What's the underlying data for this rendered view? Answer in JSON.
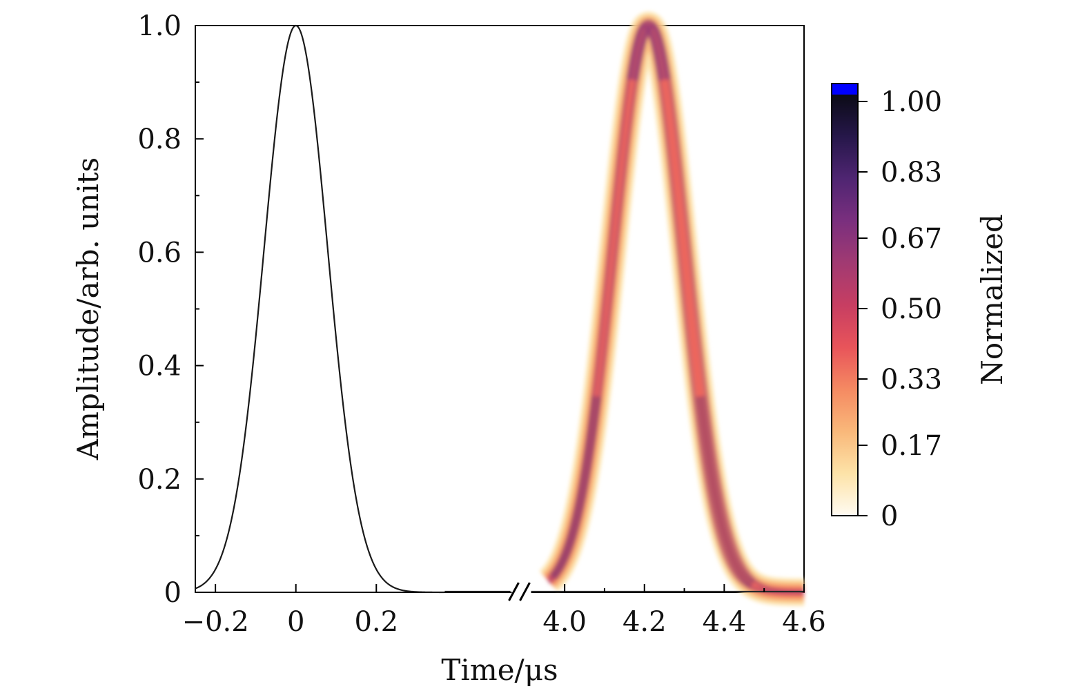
{
  "chart_data": {
    "type": "line",
    "title": "",
    "xlabel": "Time/μs",
    "ylabel": "Amplitude/arb. units",
    "ylim": [
      0,
      1.0
    ],
    "grid": false,
    "x_axis_break": true,
    "x_segments": [
      {
        "xlim": [
          -0.25,
          0.39
        ],
        "ticks": [
          -0.2,
          0,
          0.2
        ],
        "tick_labels": [
          "−0.2",
          "0",
          "0.2"
        ]
      },
      {
        "xlim": [
          3.96,
          4.6
        ],
        "ticks": [
          4.0,
          4.2,
          4.4,
          4.6
        ],
        "tick_labels": [
          "4.0",
          "4.2",
          "4.4",
          "4.6"
        ]
      }
    ],
    "y_ticks": [
      0,
      0.2,
      0.4,
      0.6,
      0.8,
      1.0
    ],
    "y_tick_labels": [
      "0",
      "0.2",
      "0.4",
      "0.6",
      "0.8",
      "1.0"
    ],
    "series": [
      {
        "kind": "input pulse",
        "shape": "gaussian",
        "center": 0.0,
        "fwhm": 0.186,
        "peak": 1.0,
        "color": "#1a1a1a",
        "x": [
          -0.25,
          -0.2,
          -0.15,
          -0.1,
          -0.05,
          0.0,
          0.05,
          0.1,
          0.15,
          0.2,
          0.25,
          0.3,
          0.35
        ],
        "y": [
          0.0,
          0.03,
          0.14,
          0.41,
          0.8,
          1.0,
          0.8,
          0.41,
          0.14,
          0.03,
          0.0,
          0.0,
          0.0
        ]
      },
      {
        "kind": "output pulse density band",
        "shape": "gaussian",
        "center": 4.21,
        "fwhm": 0.21,
        "peak": 1.0,
        "band_width": 0.042,
        "x": [
          3.95,
          4.0,
          4.05,
          4.1,
          4.15,
          4.2,
          4.21,
          4.25,
          4.3,
          4.35,
          4.4,
          4.45,
          4.5
        ],
        "y": [
          0.0,
          0.03,
          0.16,
          0.42,
          0.75,
          0.99,
          1.0,
          0.88,
          0.55,
          0.24,
          0.07,
          0.01,
          0.0
        ]
      }
    ],
    "colorbar": {
      "label": "Normalized",
      "ticks": [
        0,
        0.17,
        0.33,
        0.5,
        0.67,
        0.83,
        1.0
      ],
      "tick_labels": [
        "0",
        "0.17",
        "0.33",
        "0.50",
        "0.67",
        "0.83",
        "1.00"
      ],
      "colors": [
        "#fffbf2",
        "#fde3a8",
        "#f9b87a",
        "#f58a62",
        "#e8545a",
        "#c73e62",
        "#a13a72",
        "#7a2f7e",
        "#4f2572",
        "#26174a",
        "#0b0b16",
        "#0000ff"
      ],
      "top_swatch_color": "#0000ff"
    }
  }
}
